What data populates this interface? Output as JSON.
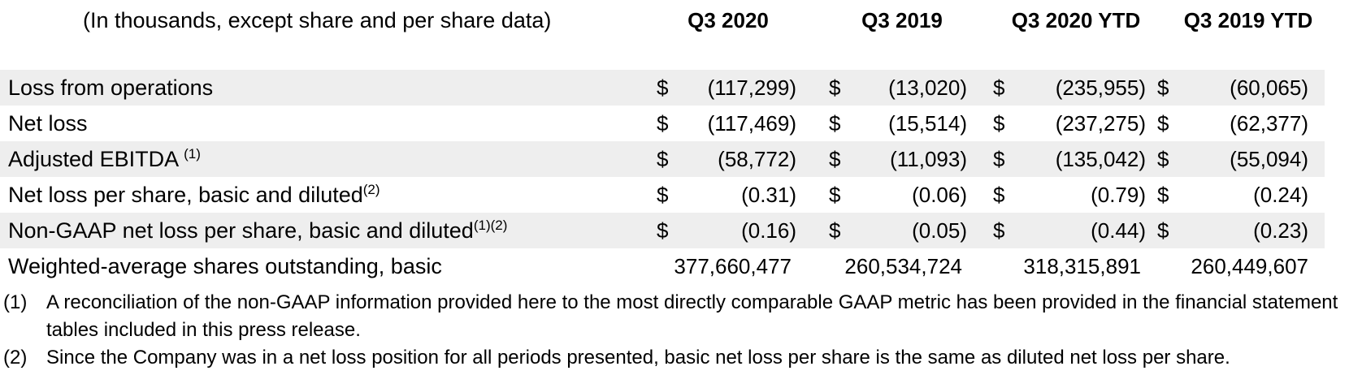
{
  "header": {
    "note": "(In thousands, except share and per share data)",
    "columns": [
      "Q3 2020",
      "Q3 2019",
      "Q3 2020 YTD",
      "Q3 2019 YTD"
    ]
  },
  "rows": [
    {
      "label": "Loss from operations",
      "sup": "",
      "currency": "$",
      "values": [
        "(117,299)",
        "(13,020)",
        "(235,955)",
        "(60,065)"
      ]
    },
    {
      "label": "Net loss",
      "sup": "",
      "currency": "$",
      "values": [
        "(117,469)",
        "(15,514)",
        "(237,275)",
        "(62,377)"
      ]
    },
    {
      "label": "Adjusted EBITDA",
      "sup": "(1)",
      "currency": "$",
      "values": [
        "(58,772)",
        "(11,093)",
        "(135,042)",
        "(55,094)"
      ]
    },
    {
      "label": "Net loss per share, basic and diluted",
      "sup": "(2)",
      "currency": "$",
      "values": [
        "(0.31)",
        "(0.06)",
        "(0.79)",
        "(0.24)"
      ]
    },
    {
      "label": "Non-GAAP net loss per share, basic and diluted",
      "sup": "(1)(2)",
      "currency": "$",
      "values": [
        "(0.16)",
        "(0.05)",
        "(0.44)",
        "(0.23)"
      ]
    },
    {
      "label": "Weighted-average shares outstanding, basic",
      "sup": "",
      "currency": "",
      "values": [
        "377,660,477",
        "260,534,724",
        "318,315,891",
        "260,449,607"
      ]
    }
  ],
  "footnotes": [
    {
      "num": "(1)",
      "text": "A reconciliation of the non-GAAP information provided here to the most directly comparable GAAP metric has been provided in the financial statement tables included in this press release."
    },
    {
      "num": "(2)",
      "text": "Since the Company was in a net loss position for all periods presented, basic net loss per share is the same as diluted net loss per share."
    }
  ]
}
